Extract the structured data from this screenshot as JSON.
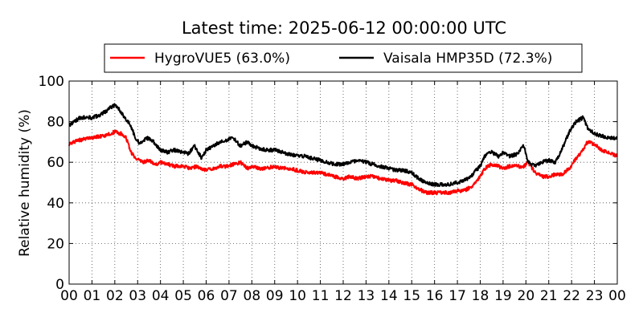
{
  "chart_data": {
    "type": "line",
    "title": "Latest time: 2025-06-12 00:00:00 UTC",
    "xlabel": "",
    "ylabel": "Relative humidity (%)",
    "ylim": [
      0,
      100
    ],
    "xlim": [
      0,
      24
    ],
    "x_tick_labels": [
      "00",
      "01",
      "02",
      "03",
      "04",
      "05",
      "06",
      "07",
      "08",
      "09",
      "10",
      "11",
      "12",
      "13",
      "14",
      "15",
      "16",
      "17",
      "18",
      "19",
      "20",
      "21",
      "22",
      "23",
      "00"
    ],
    "y_ticks": [
      0,
      20,
      40,
      60,
      80,
      100
    ],
    "grid": true,
    "legend_position": "top-center",
    "series": [
      {
        "name": "HygroVUE5 (63.0%)",
        "color": "#ff0000",
        "x": [
          0,
          0.2,
          0.5,
          1,
          1.5,
          1.8,
          2,
          2.3,
          2.5,
          2.7,
          2.9,
          3.2,
          3.5,
          3.8,
          4,
          4.3,
          4.6,
          5,
          5.3,
          5.6,
          6,
          6.3,
          6.6,
          6.9,
          7.2,
          7.5,
          7.8,
          8,
          8.3,
          8.6,
          9,
          9.3,
          9.6,
          10,
          10.3,
          10.6,
          11,
          11.3,
          11.6,
          12,
          12.3,
          12.6,
          13,
          13.3,
          13.6,
          14,
          14.3,
          14.6,
          15,
          15.3,
          15.6,
          16,
          16.3,
          16.6,
          17,
          17.3,
          17.6,
          17.8,
          18,
          18.2,
          18.5,
          18.8,
          19,
          19.3,
          19.6,
          19.9,
          20.1,
          20.4,
          20.7,
          21,
          21.3,
          21.6,
          21.9,
          22.2,
          22.5,
          22.7,
          23,
          23.3,
          23.6,
          24
        ],
        "y": [
          69,
          70,
          71,
          72,
          73,
          74,
          75,
          74,
          72,
          65,
          62,
          60,
          61,
          59,
          60,
          59,
          58,
          58,
          57,
          58,
          56,
          57,
          58,
          58,
          59,
          60,
          57,
          58,
          57,
          57,
          58,
          57,
          57,
          56,
          55,
          55,
          55,
          54,
          53,
          52,
          53,
          52,
          53,
          53,
          52,
          51,
          51,
          50,
          49,
          47,
          45,
          45,
          45,
          45,
          46,
          46,
          48,
          50,
          53,
          57,
          59,
          58,
          57,
          58,
          58,
          58,
          60,
          55,
          53,
          53,
          54,
          54,
          57,
          62,
          66,
          70,
          69,
          66,
          65,
          63
        ]
      },
      {
        "name": "Vaisala HMP35D (72.3%)",
        "color": "#000000",
        "x": [
          0,
          0.2,
          0.5,
          1,
          1.3,
          1.6,
          1.8,
          2,
          2.2,
          2.5,
          2.7,
          2.9,
          3.1,
          3.4,
          3.7,
          4,
          4.3,
          4.6,
          5,
          5.2,
          5.5,
          5.8,
          6,
          6.3,
          6.6,
          6.9,
          7.2,
          7.5,
          7.8,
          8,
          8.3,
          8.6,
          9,
          9.3,
          9.6,
          10,
          10.3,
          10.6,
          11,
          11.3,
          11.6,
          12,
          12.3,
          12.6,
          13,
          13.3,
          13.6,
          14,
          14.3,
          14.6,
          15,
          15.3,
          15.6,
          16,
          16.3,
          16.6,
          17,
          17.3,
          17.6,
          17.8,
          18,
          18.2,
          18.5,
          18.8,
          19,
          19.3,
          19.6,
          19.9,
          20.1,
          20.4,
          20.7,
          21,
          21.3,
          21.6,
          21.9,
          22.2,
          22.5,
          22.7,
          23,
          23.3,
          23.6,
          24
        ],
        "y": [
          78,
          80,
          82,
          82,
          83,
          85,
          87,
          88,
          86,
          81,
          78,
          72,
          69,
          72,
          70,
          66,
          65,
          66,
          65,
          64,
          68,
          62,
          66,
          68,
          70,
          71,
          72,
          68,
          70,
          68,
          67,
          66,
          66,
          65,
          64,
          63,
          63,
          62,
          61,
          60,
          59,
          59,
          60,
          61,
          60,
          59,
          58,
          57,
          56,
          56,
          55,
          52,
          50,
          49,
          49,
          49,
          50,
          51,
          53,
          56,
          58,
          63,
          65,
          63,
          65,
          63,
          64,
          68,
          60,
          58,
          60,
          61,
          60,
          67,
          75,
          80,
          82,
          77,
          74,
          73,
          72,
          72
        ]
      }
    ]
  }
}
